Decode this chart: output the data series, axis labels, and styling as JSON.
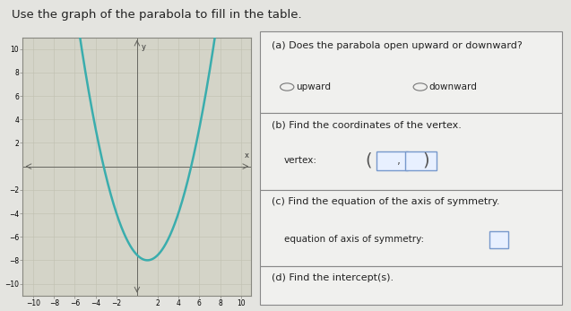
{
  "title": "Use the graph of the parabola to fill in the table.",
  "title_fontsize": 9.5,
  "background_color": "#e4e4e0",
  "graph_bg": "#d4d4c8",
  "graph_border_color": "#888880",
  "parabola_color": "#3aadad",
  "parabola_linewidth": 1.8,
  "vertex_x": 1,
  "vertex_y": -8,
  "coeff_a": 0.45,
  "xlim": [
    -11,
    11
  ],
  "ylim": [
    -11,
    11
  ],
  "xticks": [
    -10,
    -8,
    -6,
    -4,
    -2,
    2,
    4,
    6,
    8,
    10
  ],
  "yticks": [
    -10,
    -8,
    -6,
    -4,
    -2,
    2,
    4,
    6,
    8,
    10
  ],
  "grid_color": "#c0c0b0",
  "axis_color": "#666660",
  "tick_fontsize": 5.5,
  "table_border_color": "#888888",
  "table_bg": "#f0f0ee",
  "text_color": "#222222",
  "questions": [
    "(a) Does the parabola open upward or downward?",
    "(b) Find the coordinates of the vertex.",
    "(c) Find the equation of the axis of symmetry.",
    "(d) Find the intercept(s)."
  ],
  "radio_labels": [
    "upward",
    "downward"
  ],
  "vertex_label": "vertex:",
  "axis_sym_label": "equation of axis of symmetry:",
  "input_box_color": "#e8f0ff",
  "input_box_edge": "#7799cc"
}
